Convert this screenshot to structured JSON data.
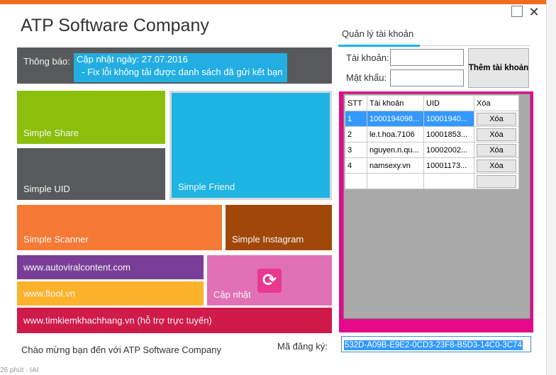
{
  "window": {
    "title": "ATP Software Company",
    "accent_color": "#f26b21"
  },
  "notice": {
    "label": "Thông báo:",
    "lines": [
      "Cập nhật ngày: 27.07.2016",
      "  - Fix lỗi không tải được danh sách đã gửi kết bạn"
    ]
  },
  "tiles": {
    "share": "Simple Share",
    "friend": "Simple Friend",
    "uid": "Simple UID",
    "scanner": "Simple Scanner",
    "instagram": "Simple Instagram",
    "link_autoviral": "www.autoviralcontent.com",
    "link_ftool": "www.ftool.vn",
    "update": "Cập nhật",
    "update_icon": "refresh-icon",
    "link_timkiem": "www.timkiemkhachhang.vn (hỗ trợ trực tuyến)"
  },
  "footer": {
    "welcome": "Chào mừng bạn đến với ATP Software Company",
    "reg_label": "Mã đăng ký:",
    "reg_value": "532D-A09B-E9E2-0CD3-23F8-B5D3-14C0-3C74",
    "partial_text": "26 phút · IAI"
  },
  "account": {
    "tab_label": "Quản lý tài khoản",
    "username_label": "Tài khoản:",
    "password_label": "Mật khẩu:",
    "username_value": "",
    "password_value": "",
    "add_button": "Thêm tài khoản",
    "columns": [
      "STT",
      "Tài khoản",
      "UID",
      "Xóa"
    ],
    "rows": [
      {
        "stt": "1",
        "account": "1000194098...",
        "uid": "10001940...",
        "delete": "Xóa"
      },
      {
        "stt": "2",
        "account": "le.t.hoa.7106",
        "uid": "10001853...",
        "delete": "Xóa"
      },
      {
        "stt": "3",
        "account": "nguyen.n.qu...",
        "uid": "10002002...",
        "delete": "Xóa"
      },
      {
        "stt": "4",
        "account": "namsexy.vn",
        "uid": "10001173...",
        "delete": "Xóa"
      }
    ]
  }
}
